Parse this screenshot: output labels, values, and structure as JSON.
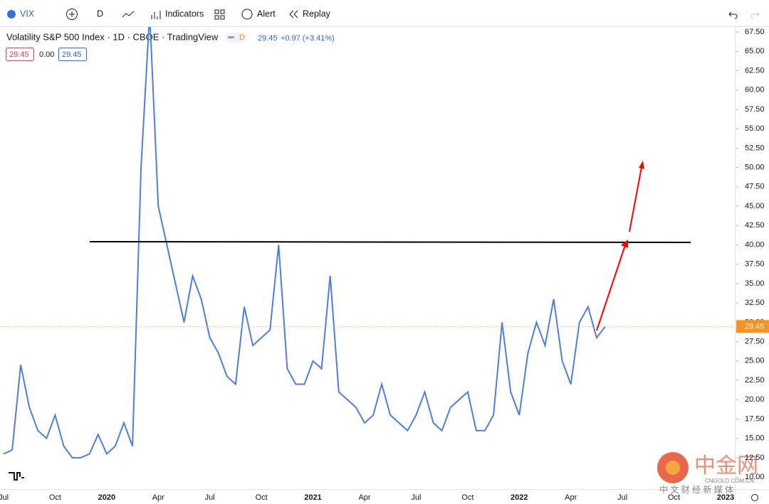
{
  "toolbar": {
    "symbol": "VIX",
    "interval": "D",
    "indicators": "Indicators",
    "alert": "Alert",
    "replay": "Replay"
  },
  "legend": {
    "title": "Volatility S&P 500 Index · 1D · CBOE · TradingView",
    "badge": "D",
    "last": "29.45",
    "change": "+0.97 (+3.41%)",
    "open": "29.45",
    "delta": "0.00",
    "close": "29.45"
  },
  "watermark": {
    "brand": "中金网",
    "site": "CNGOLD.COM.CN",
    "tagline": "中 文 财 经 新 媒 体"
  },
  "chart_data": {
    "type": "line",
    "color": "#4a7fe0",
    "categories": [
      "Jul",
      null,
      null,
      null,
      null,
      null,
      "Oct",
      null,
      null,
      null,
      null,
      null,
      "2020",
      null,
      null,
      null,
      null,
      null,
      "Apr",
      null,
      null,
      null,
      null,
      null,
      "Jul",
      null,
      null,
      null,
      null,
      null,
      "Oct",
      null,
      null,
      null,
      null,
      null,
      "2021",
      null,
      null,
      null,
      null,
      null,
      "Apr",
      null,
      null,
      null,
      null,
      null,
      "Jul",
      null,
      null,
      null,
      null,
      null,
      "Oct",
      null,
      null,
      null,
      null,
      null,
      "2022",
      null,
      null,
      null,
      null,
      null,
      "Apr",
      null,
      null,
      null,
      null,
      null,
      "Jul",
      null,
      null,
      null,
      null,
      null,
      "Oct",
      null,
      null,
      null,
      null,
      null,
      "2023"
    ],
    "values": [
      13,
      13.5,
      24.5,
      19,
      16,
      15,
      18,
      14,
      12.5,
      12.5,
      13,
      15.5,
      13,
      14,
      17,
      14,
      50,
      70,
      45,
      40,
      35,
      30,
      36,
      33,
      28,
      26,
      23,
      22,
      32,
      27,
      28,
      29,
      40,
      24,
      22,
      22,
      25,
      24,
      36,
      21,
      20,
      19,
      17,
      18,
      22,
      18,
      17,
      16,
      18,
      21,
      17,
      16,
      19,
      20,
      21,
      16,
      16,
      18,
      30,
      21,
      18,
      26,
      30,
      27,
      33,
      25,
      22,
      30,
      32,
      28,
      29.45,
      null,
      null,
      null,
      null,
      null,
      null,
      null,
      null,
      null,
      null,
      null,
      null,
      null,
      null
    ],
    "ylim": [
      8.45,
      68.15
    ],
    "yticks": [
      {
        "value": 10,
        "label": "10.00"
      },
      {
        "value": 12.5,
        "label": "12.50"
      },
      {
        "value": 15,
        "label": "15.00"
      },
      {
        "value": 17.5,
        "label": "17.50"
      },
      {
        "value": 20,
        "label": "20.00"
      },
      {
        "value": 22.5,
        "label": "22.50"
      },
      {
        "value": 25,
        "label": "25.00"
      },
      {
        "value": 27.5,
        "label": "27.50"
      },
      {
        "value": 30,
        "label": "30.00"
      },
      {
        "value": 32.5,
        "label": "32.50"
      },
      {
        "value": 35,
        "label": "35.00"
      },
      {
        "value": 37.5,
        "label": "37.50"
      },
      {
        "value": 40,
        "label": "40.00"
      },
      {
        "value": 42.5,
        "label": "42.50"
      },
      {
        "value": 45,
        "label": "45.00"
      },
      {
        "value": 47.5,
        "label": "47.50"
      },
      {
        "value": 50,
        "label": "50.00"
      },
      {
        "value": 52.5,
        "label": "52.50"
      },
      {
        "value": 55,
        "label": "55.00"
      },
      {
        "value": 57.5,
        "label": "57.50"
      },
      {
        "value": 60,
        "label": "60.00"
      },
      {
        "value": 62.5,
        "label": "62.50"
      },
      {
        "value": 65,
        "label": "65.00"
      },
      {
        "value": 67.5,
        "label": "67.50"
      }
    ],
    "price_line": {
      "value": 29.45,
      "label": "29.45"
    }
  }
}
